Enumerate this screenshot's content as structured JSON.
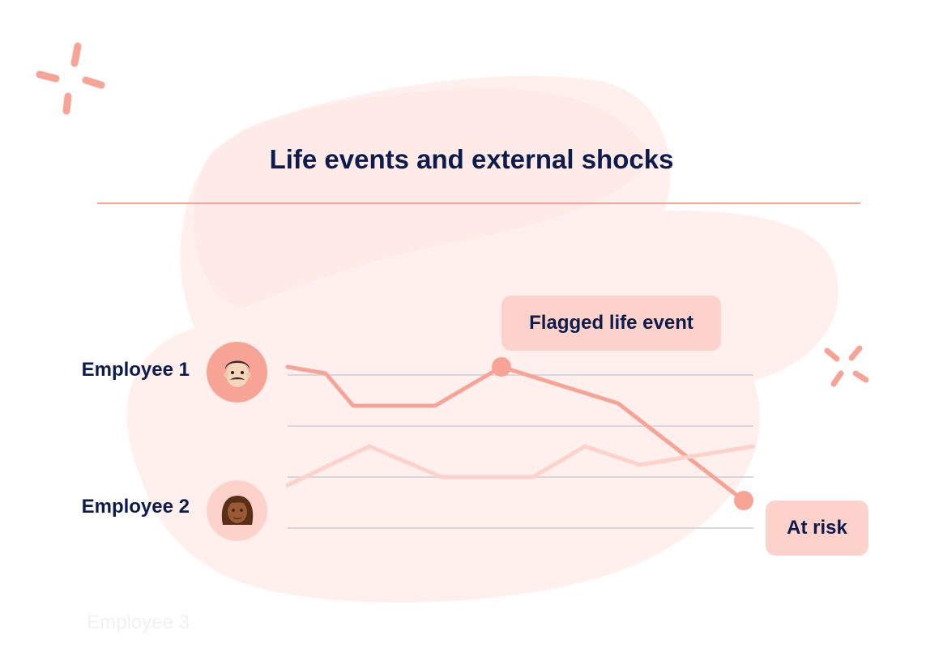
{
  "title": "Life events and external shocks",
  "employees": [
    {
      "label": "Employee 1",
      "avatar": "man-with-mustache-emoji"
    },
    {
      "label": "Employee 2",
      "avatar": "woman-curly-hair-emoji"
    },
    {
      "label": "Employee 3"
    }
  ],
  "annotations": {
    "flagged": "Flagged life event",
    "at_risk": "At risk"
  },
  "colors": {
    "accent": "#f7a497",
    "accent_light": "#fdd2cb",
    "navy": "#0d1b4c",
    "blob": "#fff0ed"
  },
  "chart_data": {
    "type": "line",
    "series": [
      {
        "values": [
          0.1,
          0.02,
          -0.38,
          -0.38,
          0.1,
          -0.35,
          -1.55
        ]
      },
      {
        "values": [
          -0.1,
          0.38,
          0.0,
          0.0,
          0.38,
          0.15,
          0.38
        ]
      }
    ]
  }
}
